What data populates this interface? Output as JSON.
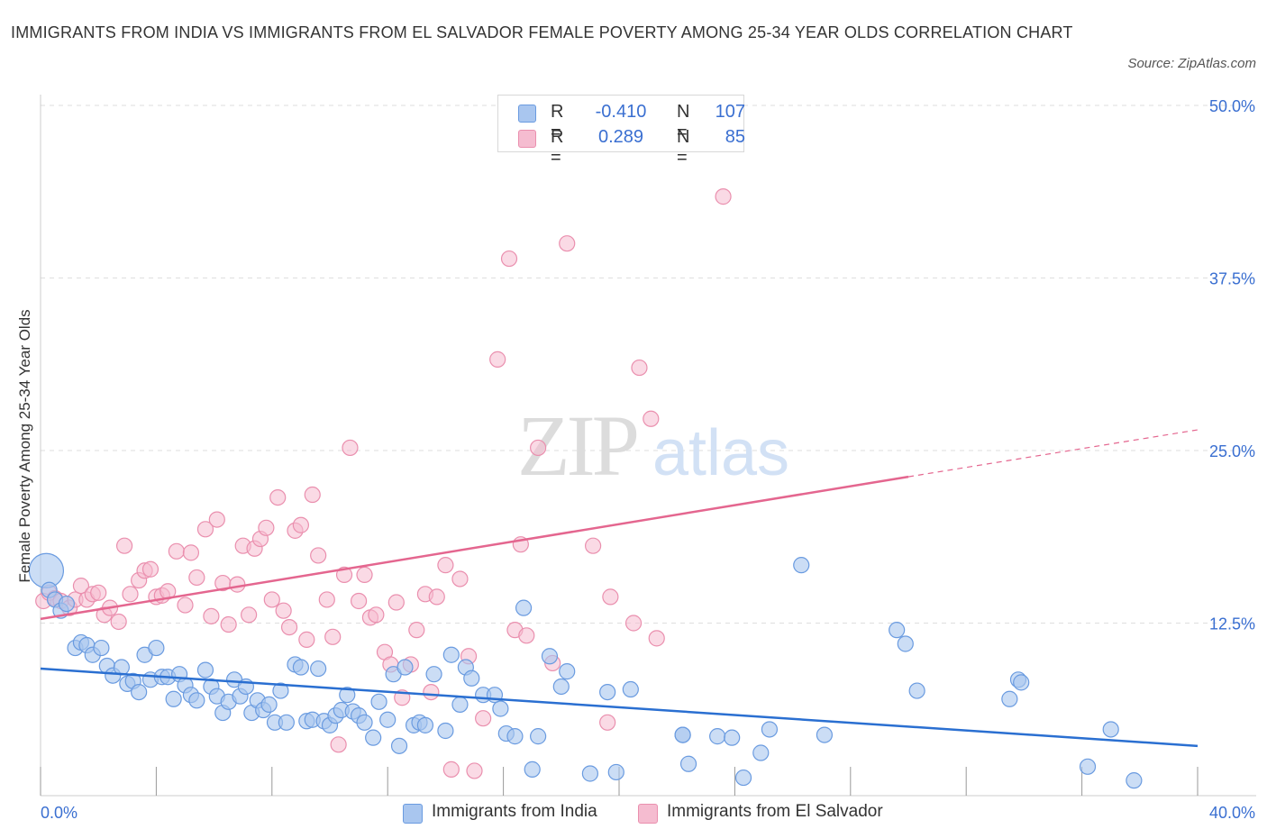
{
  "title": "IMMIGRANTS FROM INDIA VS IMMIGRANTS FROM EL SALVADOR FEMALE POVERTY AMONG 25-34 YEAR OLDS CORRELATION CHART",
  "source": "Source: ZipAtlas.com",
  "watermark": {
    "zip": "ZIP",
    "atlas": "atlas"
  },
  "legend": {
    "india": {
      "r_label": "R =",
      "r_value": "-0.410",
      "n_label": "N =",
      "n_value": "107"
    },
    "elsalvador": {
      "r_label": "R =",
      "r_value": "0.289",
      "n_label": "N =",
      "n_value": "85"
    }
  },
  "bottom_legend": {
    "india": "Immigrants from India",
    "elsalvador": "Immigrants from El Salvador"
  },
  "colors": {
    "india_fill": "#a9c6ef",
    "india_stroke": "#6a9be0",
    "india_line": "#2a6fd1",
    "es_fill": "#f5bcd0",
    "es_stroke": "#ea8fae",
    "es_line": "#e4668f",
    "axis_text": "#3a6fd1"
  },
  "chart_data": {
    "type": "scatter",
    "title": "IMMIGRANTS FROM INDIA VS IMMIGRANTS FROM EL SALVADOR FEMALE POVERTY AMONG 25-34 YEAR OLDS CORRELATION CHART",
    "xlabel": "",
    "ylabel": "Female Poverty Among 25-34 Year Olds",
    "xlim": [
      0,
      40
    ],
    "ylim": [
      0,
      50
    ],
    "x_tick_labels": [
      "0.0%",
      "40.0%"
    ],
    "y_tick_labels": [
      "12.5%",
      "25.0%",
      "37.5%",
      "50.0%"
    ],
    "y_ticks": [
      12.5,
      25.0,
      37.5,
      50.0
    ],
    "grid": "horizontal-dashed",
    "legend_position": "top-center",
    "series": [
      {
        "name": "Immigrants from India",
        "r": -0.41,
        "n": 107,
        "trend": {
          "x": [
            0,
            40
          ],
          "y": [
            9.2,
            3.6
          ],
          "extrapolated_from": null
        },
        "points": [
          [
            0.2,
            16.3
          ],
          [
            0.3,
            14.9
          ],
          [
            0.5,
            14.2
          ],
          [
            0.7,
            13.4
          ],
          [
            0.9,
            13.9
          ],
          [
            1.2,
            10.7
          ],
          [
            1.4,
            11.1
          ],
          [
            1.6,
            10.9
          ],
          [
            1.8,
            10.2
          ],
          [
            2.1,
            10.7
          ],
          [
            2.3,
            9.4
          ],
          [
            2.5,
            8.7
          ],
          [
            2.8,
            9.3
          ],
          [
            3.0,
            8.1
          ],
          [
            3.2,
            8.3
          ],
          [
            3.4,
            7.5
          ],
          [
            3.6,
            10.2
          ],
          [
            3.8,
            8.4
          ],
          [
            4.0,
            10.7
          ],
          [
            4.2,
            8.6
          ],
          [
            4.4,
            8.6
          ],
          [
            4.6,
            7.0
          ],
          [
            4.8,
            8.8
          ],
          [
            5.0,
            8.0
          ],
          [
            5.2,
            7.3
          ],
          [
            5.4,
            6.9
          ],
          [
            5.7,
            9.1
          ],
          [
            5.9,
            7.9
          ],
          [
            6.1,
            7.2
          ],
          [
            6.3,
            6.0
          ],
          [
            6.5,
            6.8
          ],
          [
            6.7,
            8.4
          ],
          [
            6.9,
            7.2
          ],
          [
            7.1,
            7.9
          ],
          [
            7.3,
            6.0
          ],
          [
            7.5,
            6.9
          ],
          [
            7.7,
            6.2
          ],
          [
            7.9,
            6.6
          ],
          [
            8.1,
            5.3
          ],
          [
            8.3,
            7.6
          ],
          [
            8.5,
            5.3
          ],
          [
            8.8,
            9.5
          ],
          [
            9.0,
            9.3
          ],
          [
            9.2,
            5.4
          ],
          [
            9.4,
            5.5
          ],
          [
            9.6,
            9.2
          ],
          [
            9.8,
            5.4
          ],
          [
            10.0,
            5.1
          ],
          [
            10.2,
            5.8
          ],
          [
            10.4,
            6.2
          ],
          [
            10.6,
            7.3
          ],
          [
            10.8,
            6.1
          ],
          [
            11.0,
            5.8
          ],
          [
            11.2,
            5.3
          ],
          [
            11.5,
            4.2
          ],
          [
            11.7,
            6.8
          ],
          [
            12.0,
            5.5
          ],
          [
            12.2,
            8.8
          ],
          [
            12.4,
            3.6
          ],
          [
            12.6,
            9.3
          ],
          [
            12.9,
            5.1
          ],
          [
            13.1,
            5.3
          ],
          [
            13.3,
            5.1
          ],
          [
            13.6,
            8.8
          ],
          [
            14.0,
            4.7
          ],
          [
            14.2,
            10.2
          ],
          [
            14.5,
            6.6
          ],
          [
            14.7,
            9.3
          ],
          [
            14.9,
            8.5
          ],
          [
            15.3,
            7.3
          ],
          [
            15.7,
            7.3
          ],
          [
            15.9,
            6.3
          ],
          [
            16.1,
            4.5
          ],
          [
            16.4,
            4.3
          ],
          [
            16.7,
            13.6
          ],
          [
            17.0,
            1.9
          ],
          [
            17.2,
            4.3
          ],
          [
            17.6,
            10.1
          ],
          [
            18.0,
            7.9
          ],
          [
            18.2,
            9.0
          ],
          [
            19.0,
            1.6
          ],
          [
            19.6,
            7.5
          ],
          [
            19.9,
            1.7
          ],
          [
            20.4,
            7.7
          ],
          [
            22.2,
            4.4
          ],
          [
            22.2,
            4.4
          ],
          [
            22.4,
            2.3
          ],
          [
            23.4,
            4.3
          ],
          [
            23.9,
            4.2
          ],
          [
            24.3,
            1.3
          ],
          [
            24.9,
            3.1
          ],
          [
            25.2,
            4.8
          ],
          [
            26.3,
            16.7
          ],
          [
            27.1,
            4.4
          ],
          [
            29.6,
            12.0
          ],
          [
            29.9,
            11.0
          ],
          [
            30.3,
            7.6
          ],
          [
            33.5,
            7.0
          ],
          [
            33.8,
            8.4
          ],
          [
            33.9,
            8.2
          ],
          [
            36.2,
            2.1
          ],
          [
            37.0,
            4.8
          ],
          [
            37.8,
            1.1
          ]
        ]
      },
      {
        "name": "Immigrants from El Salvador",
        "r": 0.289,
        "n": 85,
        "trend": {
          "x": [
            0,
            30
          ],
          "y": [
            12.8,
            23.1
          ],
          "dashed_to": [
            40,
            26.5
          ]
        },
        "points": [
          [
            0.1,
            14.1
          ],
          [
            0.3,
            14.7
          ],
          [
            0.5,
            14.3
          ],
          [
            0.7,
            14.1
          ],
          [
            1.0,
            13.6
          ],
          [
            1.2,
            14.2
          ],
          [
            1.4,
            15.2
          ],
          [
            1.6,
            14.2
          ],
          [
            1.8,
            14.6
          ],
          [
            2.0,
            14.7
          ],
          [
            2.2,
            13.1
          ],
          [
            2.4,
            13.6
          ],
          [
            2.7,
            12.6
          ],
          [
            2.9,
            18.1
          ],
          [
            3.1,
            14.6
          ],
          [
            3.4,
            15.6
          ],
          [
            3.6,
            16.3
          ],
          [
            3.8,
            16.4
          ],
          [
            4.0,
            14.4
          ],
          [
            4.2,
            14.5
          ],
          [
            4.4,
            14.8
          ],
          [
            4.7,
            17.7
          ],
          [
            5.0,
            13.8
          ],
          [
            5.2,
            17.6
          ],
          [
            5.4,
            15.8
          ],
          [
            5.7,
            19.3
          ],
          [
            5.9,
            13.0
          ],
          [
            6.1,
            20.0
          ],
          [
            6.3,
            15.4
          ],
          [
            6.5,
            12.4
          ],
          [
            6.8,
            15.3
          ],
          [
            7.0,
            18.1
          ],
          [
            7.2,
            13.1
          ],
          [
            7.4,
            17.9
          ],
          [
            7.6,
            18.6
          ],
          [
            7.8,
            19.4
          ],
          [
            8.0,
            14.2
          ],
          [
            8.2,
            21.6
          ],
          [
            8.4,
            13.4
          ],
          [
            8.6,
            12.2
          ],
          [
            8.8,
            19.2
          ],
          [
            9.0,
            19.6
          ],
          [
            9.2,
            11.3
          ],
          [
            9.4,
            21.8
          ],
          [
            9.6,
            17.4
          ],
          [
            9.9,
            14.2
          ],
          [
            10.1,
            11.5
          ],
          [
            10.3,
            3.7
          ],
          [
            10.5,
            16.0
          ],
          [
            10.7,
            25.2
          ],
          [
            11.0,
            14.1
          ],
          [
            11.2,
            16.0
          ],
          [
            11.4,
            12.9
          ],
          [
            11.6,
            13.1
          ],
          [
            11.9,
            10.4
          ],
          [
            12.1,
            9.5
          ],
          [
            12.3,
            14.0
          ],
          [
            12.5,
            7.1
          ],
          [
            12.8,
            9.5
          ],
          [
            13.0,
            12.0
          ],
          [
            13.3,
            14.6
          ],
          [
            13.5,
            7.5
          ],
          [
            13.7,
            14.4
          ],
          [
            14.0,
            16.7
          ],
          [
            14.2,
            1.9
          ],
          [
            14.5,
            15.7
          ],
          [
            14.8,
            10.1
          ],
          [
            15.0,
            1.8
          ],
          [
            15.3,
            5.6
          ],
          [
            15.8,
            31.6
          ],
          [
            16.2,
            38.9
          ],
          [
            16.4,
            12.0
          ],
          [
            16.6,
            18.2
          ],
          [
            16.8,
            11.6
          ],
          [
            17.2,
            25.2
          ],
          [
            17.7,
            9.6
          ],
          [
            18.2,
            40.0
          ],
          [
            19.1,
            18.1
          ],
          [
            19.6,
            5.3
          ],
          [
            19.7,
            14.4
          ],
          [
            20.5,
            12.5
          ],
          [
            20.7,
            31.0
          ],
          [
            21.1,
            27.3
          ],
          [
            21.3,
            11.4
          ],
          [
            23.6,
            43.4
          ]
        ]
      }
    ]
  }
}
